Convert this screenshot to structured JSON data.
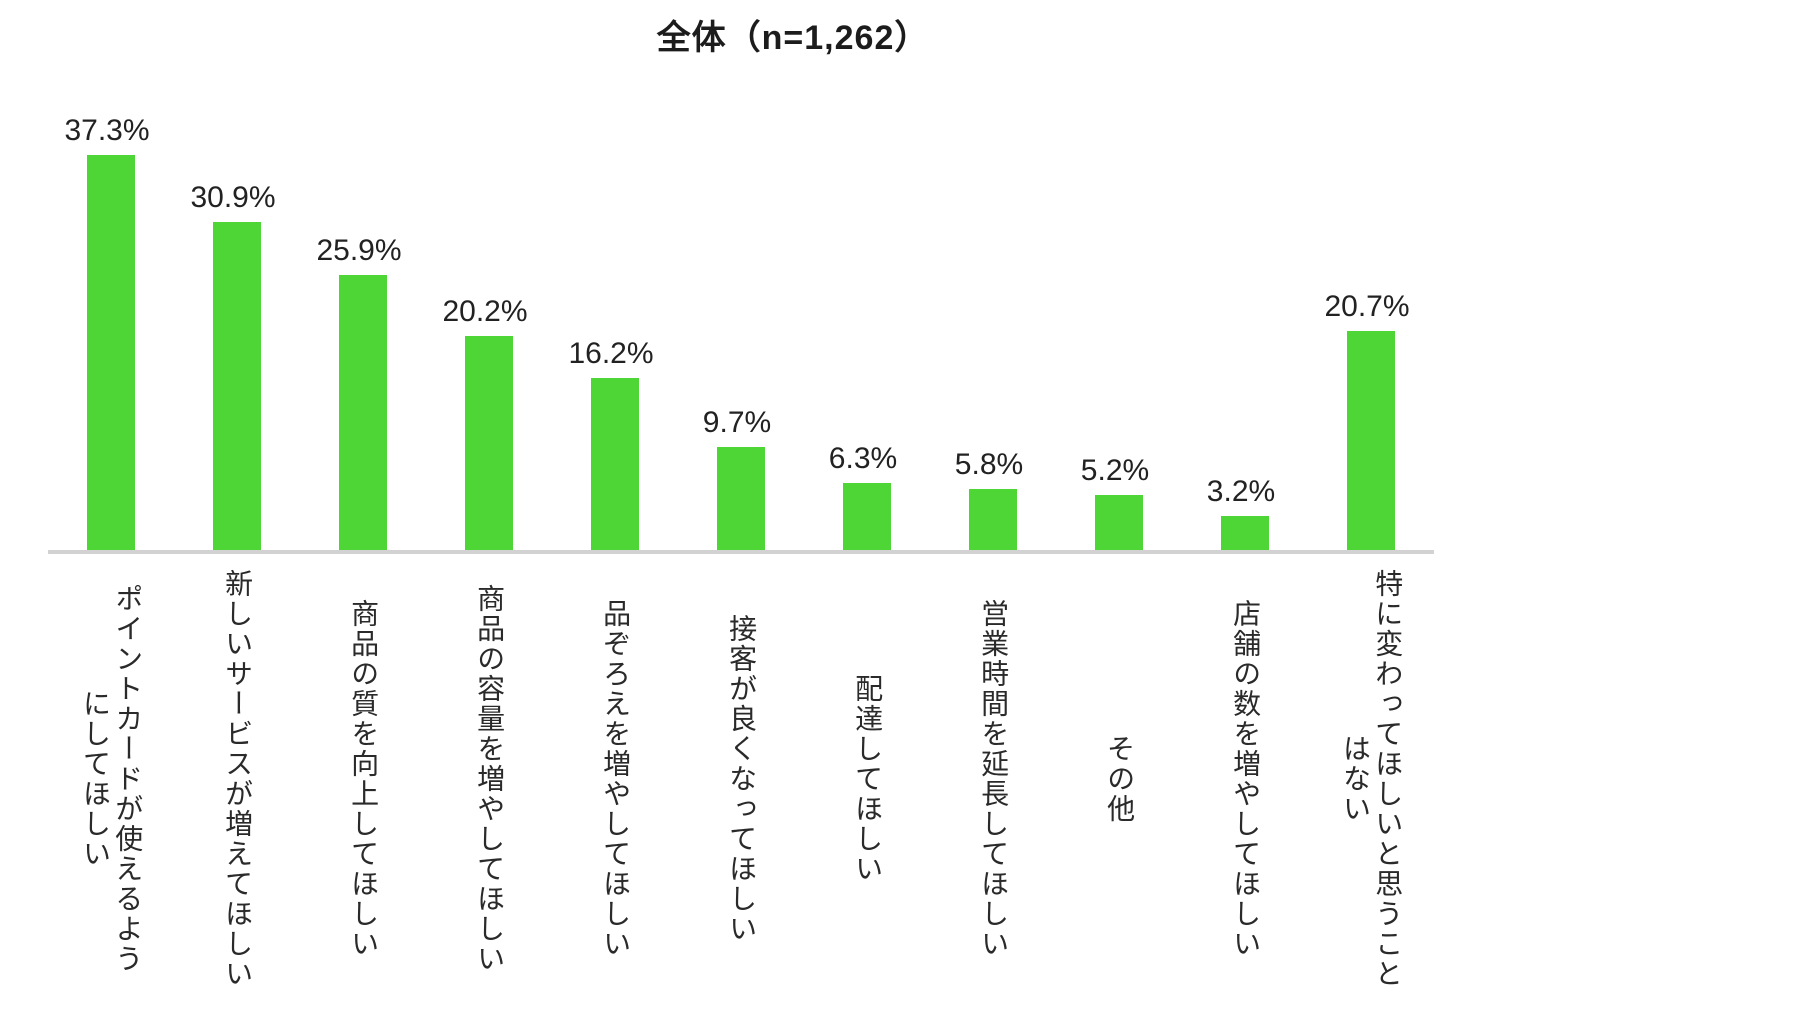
{
  "chart_data": {
    "type": "bar",
    "title": "全体（n=1,262）",
    "categories": [
      "ポイントカードが使えるよう\nにしてほしい",
      "新しいサービスが増えてほしい",
      "商品の質を向上してほしい",
      "商品の容量を増やしてほしい",
      "品ぞろえを増やしてほしい",
      "接客が良くなってほしい",
      "配達してほしい",
      "営業時間を延長してほしい",
      "その他",
      "店舗の数を増やしてほしい",
      "特に変わってほしいと思うこと\nはない"
    ],
    "values": [
      37.3,
      30.9,
      25.9,
      20.2,
      16.2,
      9.7,
      6.3,
      5.8,
      5.2,
      3.2,
      20.7
    ],
    "value_labels": [
      "37.3%",
      "30.9%",
      "25.9%",
      "20.2%",
      "16.2%",
      "9.7%",
      "6.3%",
      "5.8%",
      "5.2%",
      "3.2%",
      "20.7%"
    ],
    "xlabel": "",
    "ylabel": "",
    "ylim": [
      0,
      42
    ],
    "grid": false,
    "legend": false,
    "bar_color": "#4dd636",
    "axis_color": "#d2d2d2",
    "text_color": "#222222",
    "unit": "%"
  }
}
